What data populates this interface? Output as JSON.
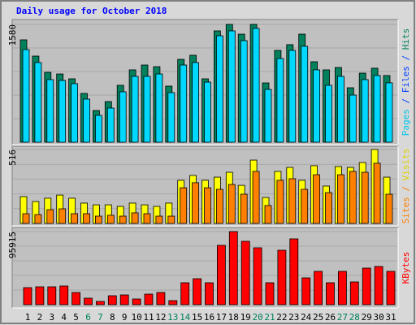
{
  "chart_data": [
    {
      "type": "bar",
      "title": "Daily usage for October 2018",
      "series": [
        {
          "name": "Hits",
          "color": "#00805c",
          "values": [
            1373,
            1155,
            937,
            915,
            850,
            654,
            425,
            545,
            763,
            970,
            1035,
            1013,
            752,
            1111,
            1166,
            850,
            1493,
            1580,
            1449,
            1580,
            795,
            1231,
            1308,
            1449,
            1079,
            970,
            1002,
            730,
            926,
            992,
            894
          ]
        },
        {
          "name": "Files",
          "color": "#00d8ff",
          "values": [
            1242,
            1068,
            839,
            828,
            785,
            578,
            360,
            458,
            676,
            883,
            883,
            915,
            665,
            1035,
            1068,
            806,
            1427,
            1493,
            1362,
            1526,
            708,
            1122,
            1231,
            1286,
            970,
            763,
            883,
            632,
            839,
            894,
            796
          ]
        }
      ],
      "ylim": [
        0,
        1580
      ],
      "yticks": [
        1580
      ],
      "side_label": [
        {
          "text": "Pages",
          "color": "#00c8e8"
        },
        {
          "text": " / ",
          "color": "#0040ff"
        },
        {
          "text": "Files",
          "color": "#0040ff"
        },
        {
          "text": " / ",
          "color": "#0040ff"
        },
        {
          "text": "Hits",
          "color": "#00805c"
        }
      ]
    },
    {
      "type": "bar",
      "series": [
        {
          "name": "Visits",
          "color": "#ffff00",
          "values": [
            187,
            153,
            176,
            198,
            176,
            142,
            130,
            130,
            119,
            142,
            130,
            119,
            142,
            301,
            335,
            301,
            323,
            357,
            266,
            442,
            181,
            363,
            391,
            301,
            403,
            261,
            397,
            391,
            425,
            516,
            323
          ]
        },
        {
          "name": "Sites",
          "color": "#ff8000",
          "values": [
            68,
            62,
            96,
            102,
            68,
            68,
            51,
            57,
            51,
            74,
            68,
            51,
            51,
            249,
            284,
            249,
            238,
            272,
            204,
            363,
            125,
            301,
            312,
            238,
            340,
            215,
            340,
            363,
            357,
            420,
            204
          ]
        }
      ],
      "ylim": [
        0,
        516
      ],
      "yticks": [
        516
      ],
      "side_label": [
        {
          "text": "Sites",
          "color": "#ff8000"
        },
        {
          "text": " / ",
          "color": "#ff8000"
        },
        {
          "text": "Visits",
          "color": "#e0d000"
        }
      ]
    },
    {
      "type": "bar",
      "series": [
        {
          "name": "KBytes",
          "color": "#ff0000",
          "values": [
            22386,
            23452,
            23452,
            24518,
            15990,
            8528,
            4264,
            11726,
            12792,
            7462,
            13858,
            15990,
            5330,
            28782,
            34112,
            28782,
            77818,
            95915,
            83148,
            74620,
            28782,
            71422,
            86346,
            35178,
            43706,
            28782,
            43706,
            29848,
            47970,
            50102,
            43706
          ]
        }
      ],
      "ylim": [
        0,
        95915
      ],
      "yticks": [
        95915
      ],
      "side_label": [
        {
          "text": "KBytes",
          "color": "#ff0000"
        }
      ],
      "categories": [
        "1",
        "2",
        "3",
        "4",
        "5",
        "6",
        "7",
        "8",
        "9",
        "10",
        "11",
        "12",
        "13",
        "14",
        "15",
        "16",
        "17",
        "18",
        "19",
        "20",
        "21",
        "22",
        "23",
        "24",
        "25",
        "26",
        "27",
        "28",
        "29",
        "30",
        "31"
      ],
      "category_colors": [
        "#000",
        "#000",
        "#000",
        "#000",
        "#000",
        "#00805c",
        "#00805c",
        "#000",
        "#000",
        "#000",
        "#000",
        "#000",
        "#00805c",
        "#00805c",
        "#000",
        "#000",
        "#000",
        "#000",
        "#000",
        "#00805c",
        "#00805c",
        "#000",
        "#000",
        "#000",
        "#000",
        "#000",
        "#00805c",
        "#00805c",
        "#000",
        "#000",
        "#000"
      ]
    }
  ]
}
